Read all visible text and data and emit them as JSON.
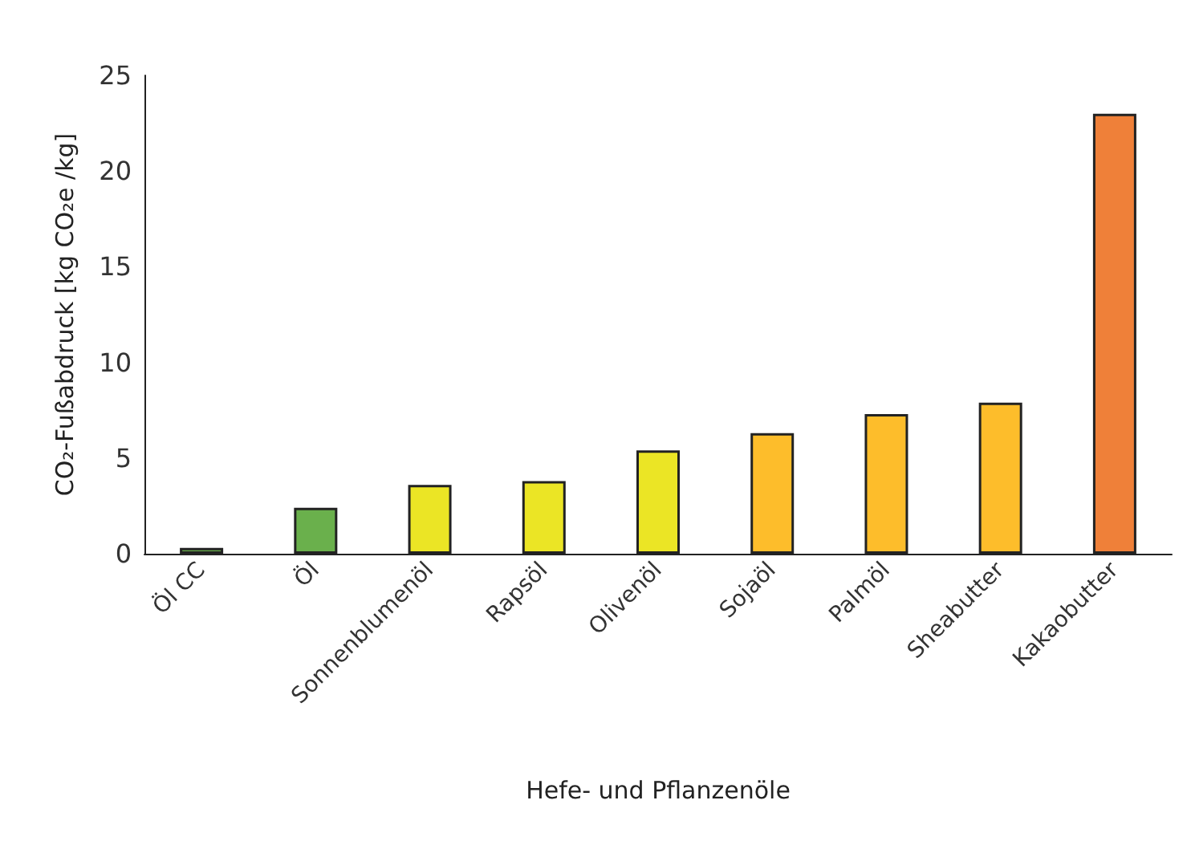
{
  "chart_data": {
    "type": "bar",
    "xlabel": "Hefe- und Pflanzenöle",
    "ylabel": "CO₂-Fußabdruck [kg CO₂e /kg]",
    "categories": [
      "Öl CC",
      "Öl",
      "Sonnenblumenöl",
      "Rapsöl",
      "Olivenöl",
      "Sojaöl",
      "Palmöl",
      "Sheabutter",
      "Kakaobutter"
    ],
    "values": [
      0.3,
      2.4,
      3.6,
      3.8,
      5.4,
      6.3,
      7.3,
      7.9,
      23
    ],
    "colors": [
      "#6ab04c",
      "#6ab04c",
      "#ebe525",
      "#ebe525",
      "#ebe525",
      "#fdbd2b",
      "#fdbd2b",
      "#fdbd2b",
      "#ef8039"
    ],
    "ylim": [
      0,
      25
    ],
    "yticks": [
      0,
      5,
      10,
      15,
      20,
      25
    ]
  }
}
